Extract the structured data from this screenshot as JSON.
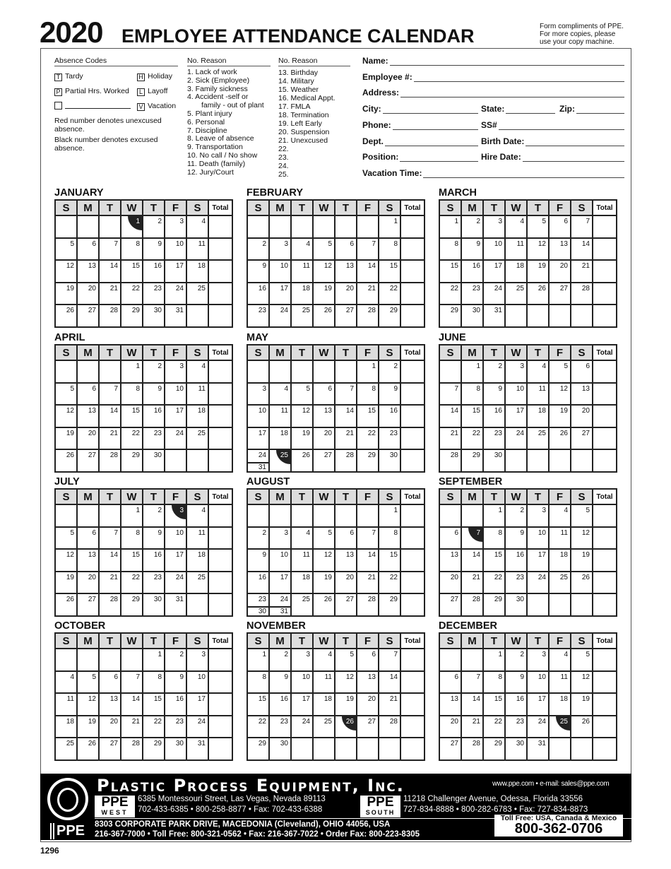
{
  "header": {
    "year": "2020",
    "title": "EMPLOYEE ATTENDANCE CALENDAR",
    "compliments": [
      "Form compliments of PPE.",
      "For more copies, please",
      "use your copy machine."
    ]
  },
  "absence_codes": {
    "heading": "Absence Codes",
    "codes": [
      {
        "code": "T",
        "label": "Tardy"
      },
      {
        "code": "H",
        "label": "Holiday"
      },
      {
        "code": "P",
        "label": "Partial Hrs. Worked"
      },
      {
        "code": "L",
        "label": "Layoff"
      },
      {
        "code": "",
        "label": ""
      },
      {
        "code": "V",
        "label": "Vacation"
      }
    ],
    "note_red": "Red number denotes unexcused absence.",
    "note_black": "Black number denotes excused absence."
  },
  "reasons_heading": "No. Reason",
  "reasons_left": [
    "1. Lack of work",
    "2. Sick (Employee)",
    "3. Family sickness",
    "4. Accident -self or",
    "family - out of plant",
    "5. Plant injury",
    "6. Personal",
    "7. Discipline",
    "8. Leave of absence",
    "9. Transportation",
    "10. No call / No show",
    "11. Death (family)",
    "12. Jury/Court"
  ],
  "reasons_right": [
    "13. Birthday",
    "14. Military",
    "15. Weather",
    "16. Medical Appt.",
    "17. FMLA",
    "18. Termination",
    "19. Left Early",
    "20. Suspension",
    "21. Unexcused",
    "22.",
    "23.",
    "24.",
    "25."
  ],
  "form": {
    "name": "Name:",
    "employee": "Employee #:",
    "address": "Address:",
    "city": "City:",
    "state": "State:",
    "zip": "Zip:",
    "phone": "Phone:",
    "ss": "SS#",
    "dept": "Dept.",
    "birth": "Birth Date:",
    "position": "Position:",
    "hire": "Hire Date:",
    "vacation": "Vacation Time:"
  },
  "weekdays": [
    "S",
    "M",
    "T",
    "W",
    "T",
    "F",
    "S"
  ],
  "total_label": "Total",
  "months": [
    {
      "name": "JANUARY",
      "start": 3,
      "days": 31,
      "holidays": [
        1
      ]
    },
    {
      "name": "FEBRUARY",
      "start": 6,
      "days": 29,
      "holidays": []
    },
    {
      "name": "MARCH",
      "start": 0,
      "days": 31,
      "holidays": []
    },
    {
      "name": "APRIL",
      "start": 3,
      "days": 30,
      "holidays": []
    },
    {
      "name": "MAY",
      "start": 5,
      "days": 31,
      "holidays": [
        25
      ]
    },
    {
      "name": "JUNE",
      "start": 1,
      "days": 30,
      "holidays": []
    },
    {
      "name": "JULY",
      "start": 3,
      "days": 31,
      "holidays": [
        3
      ]
    },
    {
      "name": "AUGUST",
      "start": 6,
      "days": 31,
      "holidays": []
    },
    {
      "name": "SEPTEMBER",
      "start": 2,
      "days": 30,
      "holidays": [
        7
      ]
    },
    {
      "name": "OCTOBER",
      "start": 4,
      "days": 31,
      "holidays": []
    },
    {
      "name": "NOVEMBER",
      "start": 0,
      "days": 30,
      "holidays": [
        26
      ]
    },
    {
      "name": "DECEMBER",
      "start": 2,
      "days": 31,
      "holidays": [
        25
      ]
    }
  ],
  "holiday_color": "#222222",
  "footer": {
    "company": "Plastic Process Equipment, Inc.",
    "web": "www.ppe.com • e-mail: sales@ppe.com",
    "west_logo": "PPE",
    "west_sub": "WEST",
    "west_addr": "6385 Montessouri Street, Las Vegas, Nevada 89113",
    "west_phone": "702-433-6385 • 800-258-8877 • Fax: 702-433-6388",
    "south_logo": "PPE",
    "south_sub": "SOUTH",
    "south_addr": "11218 Challenger Avenue, Odessa, Florida 33556",
    "south_phone": "727-834-8888 • 800-282-6783 • Fax: 727-834-8873",
    "hq_addr": "8303 CORPORATE PARK DRIVE, MACEDONIA (Cleveland), OHIO 44056, USA",
    "hq_phone": "216-367-7000 • Toll Free: 800-321-0562 • Fax: 216-367-7022 • Order Fax: 800-223-8305",
    "hq_logo": "PPE",
    "tollfree_label": "Toll Free: USA, Canada & Mexico",
    "tollfree_number": "800-362-0706"
  },
  "form_number": "1296"
}
